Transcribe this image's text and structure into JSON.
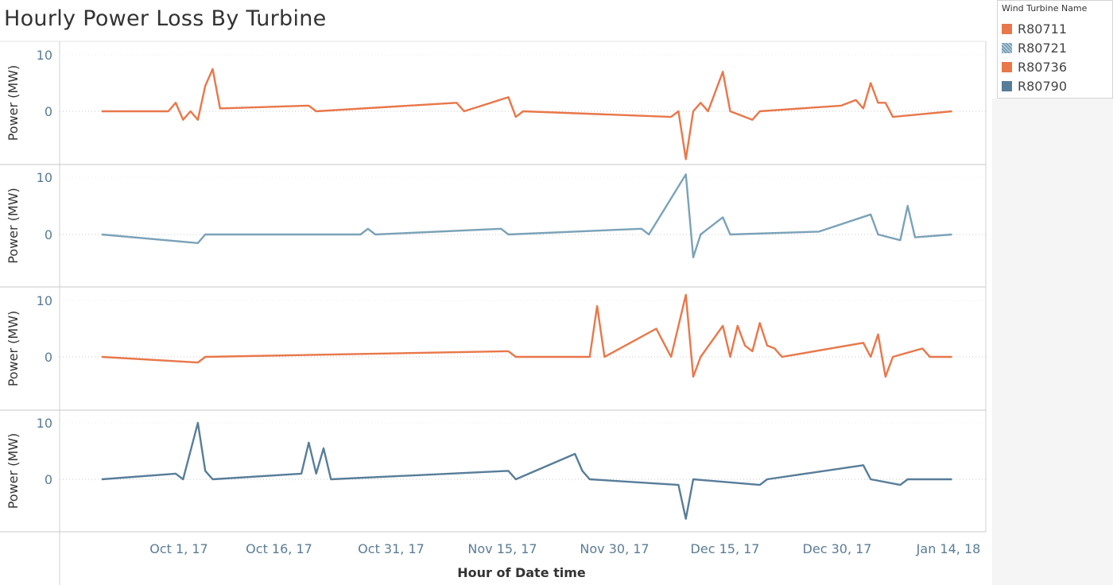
{
  "title": "Hourly Power Loss By Turbine",
  "legend": {
    "title": "Wind Turbine Name",
    "items": [
      {
        "label": "R80711",
        "color": "#e8774a",
        "icon": "square-swatch"
      },
      {
        "label": "R80721",
        "color": "#7ba2b8",
        "icon": "hatched-square-swatch"
      },
      {
        "label": "R80736",
        "color": "#e8774a",
        "icon": "square-swatch"
      },
      {
        "label": "R80790",
        "color": "#577d99",
        "icon": "square-swatch"
      }
    ]
  },
  "chart_data": {
    "type": "line",
    "xlabel": "Hour of Date time",
    "ylabel": "Power (MW)",
    "x_ticks": [
      "Oct 1, 17",
      "Oct 16, 17",
      "Oct 31, 17",
      "Nov 15, 17",
      "Nov 30, 17",
      "Dec 15, 17",
      "Dec 30, 17",
      "Jan 14, 18"
    ],
    "x_range": [
      "2017-09-20",
      "2018-01-13"
    ],
    "y_ticks": [
      0,
      10
    ],
    "ylim": [
      -10,
      10
    ],
    "grid": "horizontal dotted at 0",
    "legend_position": "top-right",
    "panels": [
      {
        "name": "R80711",
        "color": "#e8774a",
        "points": [
          [
            "2017-09-20",
            0
          ],
          [
            "2017-09-29",
            0
          ],
          [
            "2017-09-30",
            1.5
          ],
          [
            "2017-10-01",
            -1.5
          ],
          [
            "2017-10-02",
            0
          ],
          [
            "2017-10-03",
            -1.5
          ],
          [
            "2017-10-04",
            4.5
          ],
          [
            "2017-10-05",
            7.5
          ],
          [
            "2017-10-06",
            0.5
          ],
          [
            "2017-10-18",
            1
          ],
          [
            "2017-10-19",
            0
          ],
          [
            "2017-11-07",
            1.5
          ],
          [
            "2017-11-08",
            0
          ],
          [
            "2017-11-14",
            2.5
          ],
          [
            "2017-11-15",
            -1
          ],
          [
            "2017-11-16",
            0
          ],
          [
            "2017-12-06",
            -1
          ],
          [
            "2017-12-07",
            0
          ],
          [
            "2017-12-08",
            -8.5
          ],
          [
            "2017-12-09",
            0
          ],
          [
            "2017-12-10",
            1.5
          ],
          [
            "2017-12-11",
            0
          ],
          [
            "2017-12-13",
            7
          ],
          [
            "2017-12-14",
            0
          ],
          [
            "2017-12-17",
            -1.5
          ],
          [
            "2017-12-18",
            0
          ],
          [
            "2017-12-29",
            1
          ],
          [
            "2017-12-31",
            2
          ],
          [
            "2018-01-01",
            0.5
          ],
          [
            "2018-01-02",
            5
          ],
          [
            "2018-01-03",
            1.5
          ],
          [
            "2018-01-04",
            1.5
          ],
          [
            "2018-01-05",
            -1
          ],
          [
            "2018-01-13",
            0
          ]
        ]
      },
      {
        "name": "R80721",
        "color": "#7ba2b8",
        "points": [
          [
            "2017-09-20",
            0
          ],
          [
            "2017-10-03",
            -1.5
          ],
          [
            "2017-10-04",
            0
          ],
          [
            "2017-10-25",
            0
          ],
          [
            "2017-10-26",
            1
          ],
          [
            "2017-10-27",
            0
          ],
          [
            "2017-11-13",
            1
          ],
          [
            "2017-11-14",
            0
          ],
          [
            "2017-12-02",
            1
          ],
          [
            "2017-12-03",
            0
          ],
          [
            "2017-12-08",
            10.5
          ],
          [
            "2017-12-09",
            -4
          ],
          [
            "2017-12-10",
            0
          ],
          [
            "2017-12-13",
            3
          ],
          [
            "2017-12-14",
            0
          ],
          [
            "2017-12-26",
            0.5
          ],
          [
            "2018-01-02",
            3.5
          ],
          [
            "2018-01-03",
            0
          ],
          [
            "2018-01-06",
            -1
          ],
          [
            "2018-01-07",
            5
          ],
          [
            "2018-01-08",
            -0.5
          ],
          [
            "2018-01-13",
            0
          ]
        ]
      },
      {
        "name": "R80736",
        "color": "#e8774a",
        "points": [
          [
            "2017-09-20",
            0
          ],
          [
            "2017-10-03",
            -1
          ],
          [
            "2017-10-04",
            0
          ],
          [
            "2017-11-14",
            1
          ],
          [
            "2017-11-15",
            0
          ],
          [
            "2017-11-25",
            0
          ],
          [
            "2017-11-26",
            9
          ],
          [
            "2017-11-27",
            0
          ],
          [
            "2017-12-04",
            5
          ],
          [
            "2017-12-05",
            2.5
          ],
          [
            "2017-12-06",
            0
          ],
          [
            "2017-12-08",
            11
          ],
          [
            "2017-12-09",
            -3.5
          ],
          [
            "2017-12-10",
            0
          ],
          [
            "2017-12-13",
            5.5
          ],
          [
            "2017-12-14",
            0
          ],
          [
            "2017-12-15",
            5.5
          ],
          [
            "2017-12-16",
            2
          ],
          [
            "2017-12-17",
            1
          ],
          [
            "2017-12-18",
            6
          ],
          [
            "2017-12-19",
            2
          ],
          [
            "2017-12-20",
            1.5
          ],
          [
            "2017-12-21",
            0
          ],
          [
            "2018-01-01",
            2.5
          ],
          [
            "2018-01-02",
            0
          ],
          [
            "2018-01-03",
            4
          ],
          [
            "2018-01-04",
            -3.5
          ],
          [
            "2018-01-05",
            0
          ],
          [
            "2018-01-09",
            1.5
          ],
          [
            "2018-01-10",
            0
          ],
          [
            "2018-01-13",
            0
          ]
        ]
      },
      {
        "name": "R80790",
        "color": "#577d99",
        "points": [
          [
            "2017-09-20",
            0
          ],
          [
            "2017-09-30",
            1
          ],
          [
            "2017-10-01",
            0
          ],
          [
            "2017-10-03",
            10
          ],
          [
            "2017-10-04",
            1.5
          ],
          [
            "2017-10-05",
            0
          ],
          [
            "2017-10-17",
            1
          ],
          [
            "2017-10-18",
            6.5
          ],
          [
            "2017-10-19",
            1
          ],
          [
            "2017-10-20",
            5.5
          ],
          [
            "2017-10-21",
            0
          ],
          [
            "2017-11-14",
            1.5
          ],
          [
            "2017-11-15",
            0
          ],
          [
            "2017-11-23",
            4.5
          ],
          [
            "2017-11-24",
            1.5
          ],
          [
            "2017-11-25",
            0
          ],
          [
            "2017-12-07",
            -1
          ],
          [
            "2017-12-08",
            -7
          ],
          [
            "2017-12-09",
            0
          ],
          [
            "2017-12-18",
            -1
          ],
          [
            "2017-12-19",
            0
          ],
          [
            "2018-01-01",
            2.5
          ],
          [
            "2018-01-02",
            0
          ],
          [
            "2018-01-06",
            -1
          ],
          [
            "2018-01-07",
            0
          ],
          [
            "2018-01-13",
            0
          ]
        ]
      }
    ]
  }
}
